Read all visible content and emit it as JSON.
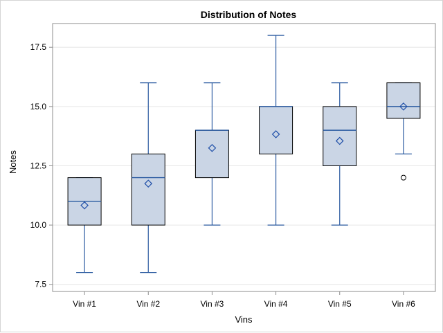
{
  "colors": {
    "box_fill": "#cad5e5",
    "box_outline": "#000000",
    "whisker": "#2a5aa0",
    "median": "#2a5aa0",
    "mean_marker": "#1f4fa8",
    "outlier": "#000000",
    "grid": "#e6e6e6",
    "axis": "#8c8c8c"
  },
  "chart_data": {
    "type": "box",
    "title": "Distribution of Notes",
    "xlabel": "Vins",
    "ylabel": "Notes",
    "ylim": [
      7.2,
      18.5
    ],
    "y_ticks": [
      "7.5",
      "10.0",
      "12.5",
      "15.0",
      "17.5"
    ],
    "grid": "horizontal",
    "categories": [
      "Vin #1",
      "Vin #2",
      "Vin #3",
      "Vin #4",
      "Vin #5",
      "Vin #6"
    ],
    "boxes": [
      {
        "min": 8,
        "q1": 10,
        "median": 11,
        "q3": 12,
        "max": 12,
        "mean": 10.83,
        "outliers": []
      },
      {
        "min": 8,
        "q1": 10,
        "median": 12,
        "q3": 13,
        "max": 16,
        "mean": 11.75,
        "outliers": []
      },
      {
        "min": 10,
        "q1": 12,
        "median": 14,
        "q3": 14,
        "max": 16,
        "mean": 13.25,
        "outliers": []
      },
      {
        "min": 10,
        "q1": 13,
        "median": 15,
        "q3": 15,
        "max": 18,
        "mean": 13.83,
        "outliers": []
      },
      {
        "min": 10,
        "q1": 12.5,
        "median": 14,
        "q3": 15,
        "max": 16,
        "mean": 13.55,
        "outliers": []
      },
      {
        "min": 13,
        "q1": 14.5,
        "median": 15,
        "q3": 16,
        "max": 16,
        "mean": 15.0,
        "outliers": [
          12
        ]
      }
    ]
  }
}
